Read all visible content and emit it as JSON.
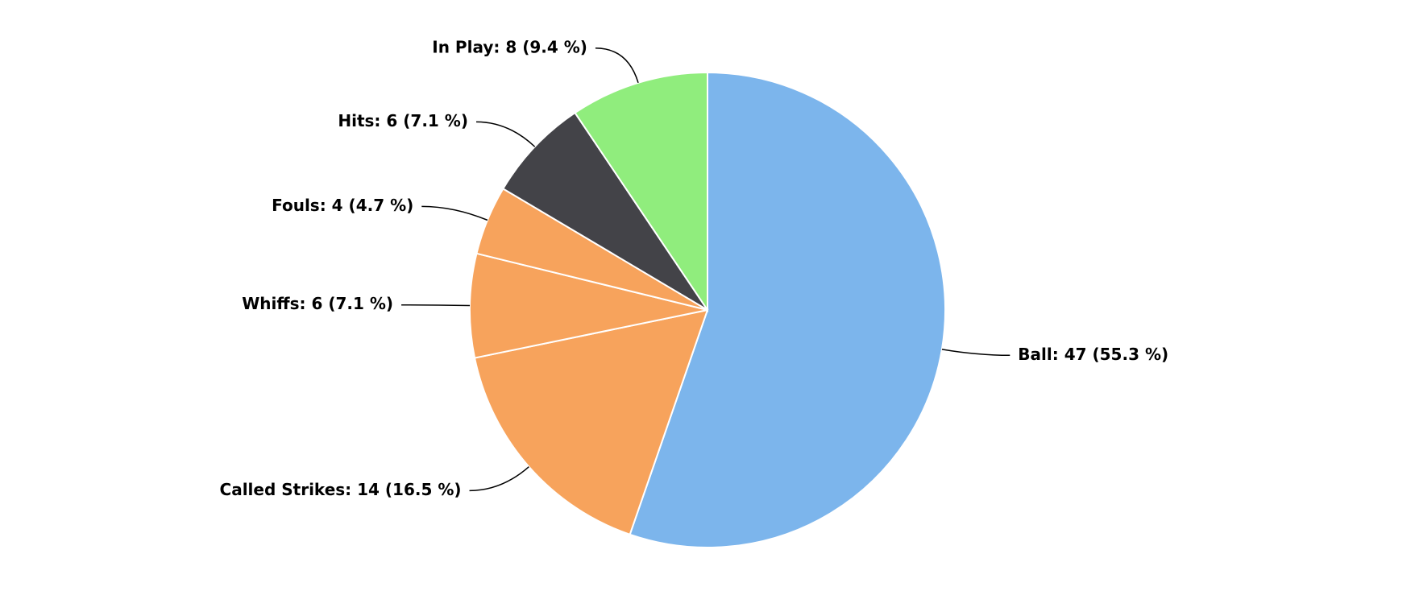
{
  "chart_data": {
    "type": "pie",
    "values": [
      47,
      14,
      6,
      4,
      6,
      8
    ],
    "value_labels": [
      "Ball: 47 (55.3 %)",
      "Called Strikes: 14 (16.5 %)",
      "Whiffs: 6 (7.1 %)",
      "Fouls: 4 (4.7 %)",
      "Hits: 6 (7.1 %)",
      "In Play: 8 (9.4 %)"
    ],
    "colors": [
      "#7cb5ec",
      "#f7a35c",
      "#f7a35c",
      "#f7a35c",
      "#434348",
      "#90ed7d"
    ]
  }
}
